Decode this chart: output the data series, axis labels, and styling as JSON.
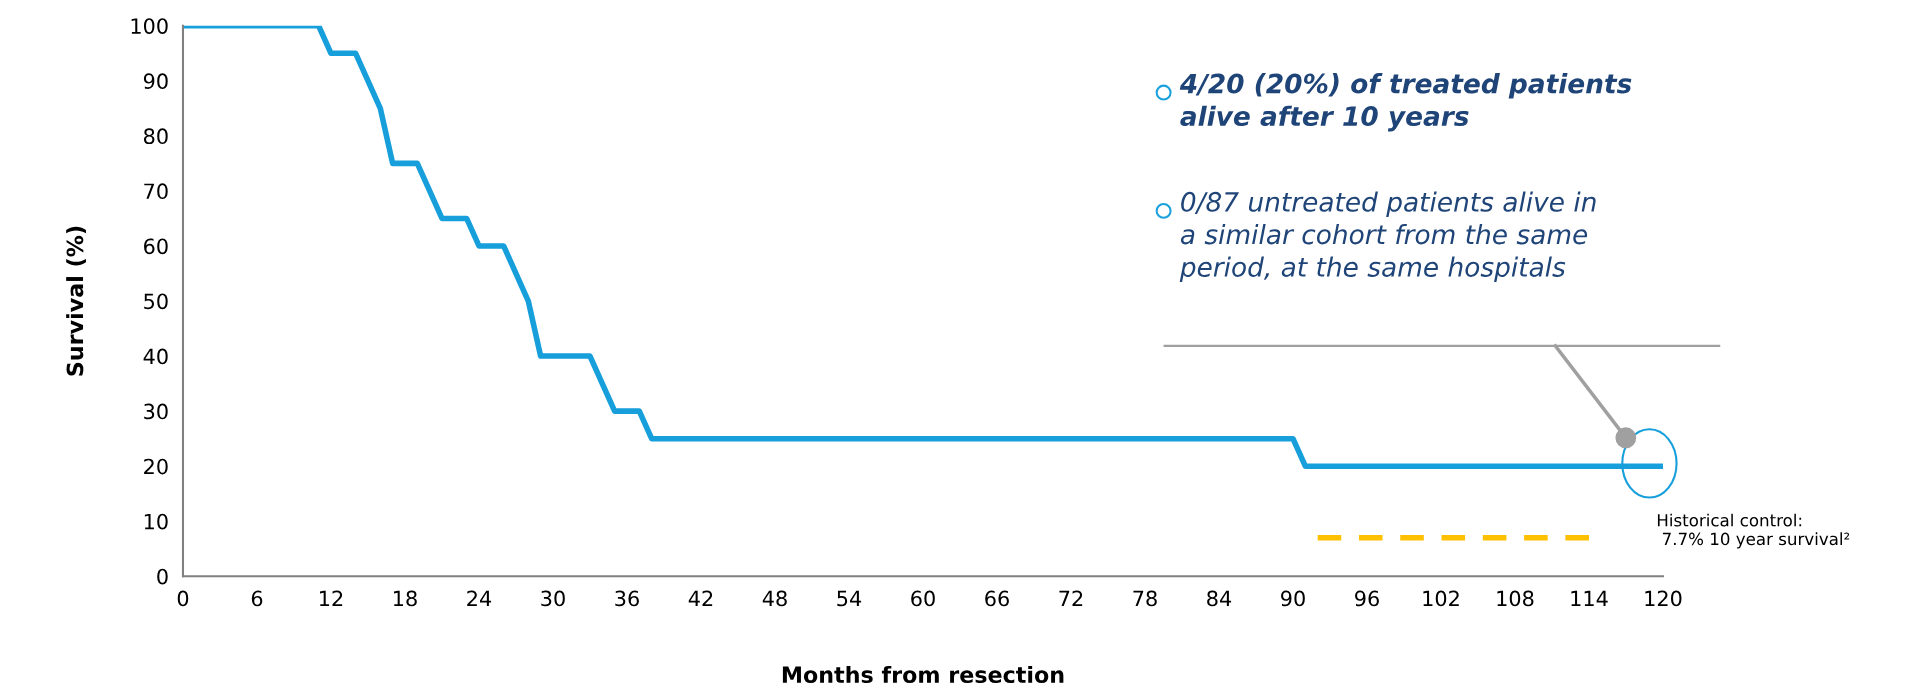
{
  "chart_data": {
    "type": "line",
    "xlabel": "Months from resection",
    "ylabel": "Survival (%)",
    "xlim": [
      0,
      120
    ],
    "xticks": [
      0,
      6,
      12,
      18,
      24,
      30,
      36,
      42,
      48,
      54,
      60,
      66,
      72,
      78,
      84,
      90,
      96,
      102,
      108,
      114,
      120
    ],
    "ylim": [
      0,
      100
    ],
    "yticks": [
      0,
      10,
      20,
      30,
      40,
      50,
      60,
      70,
      80,
      90,
      100
    ],
    "grid": false,
    "marker": "none",
    "series": [
      {
        "color": "#169fdb",
        "line_style": "solid",
        "x": [
          0,
          11,
          12,
          14,
          16,
          17,
          19,
          21,
          23,
          24,
          26,
          28,
          29,
          33,
          35,
          37,
          38,
          90,
          91,
          120
        ],
        "values": [
          100,
          100,
          95,
          95,
          85,
          75,
          75,
          65,
          65,
          60,
          60,
          50,
          40,
          40,
          30,
          30,
          25,
          25,
          20,
          20
        ]
      },
      {
        "color": "#ffc000",
        "line_style": "dashed",
        "x": [
          92,
          114
        ],
        "values": [
          7,
          7
        ]
      }
    ],
    "annotations": [
      "4/20 (20%) of treated patients\nalive after 10 years",
      "0/87 untreated patients alive in\na similar cohort from the same\nperiod, at the same hospitals",
      "Historical control:\n 7.7% 10 year survival²"
    ]
  }
}
